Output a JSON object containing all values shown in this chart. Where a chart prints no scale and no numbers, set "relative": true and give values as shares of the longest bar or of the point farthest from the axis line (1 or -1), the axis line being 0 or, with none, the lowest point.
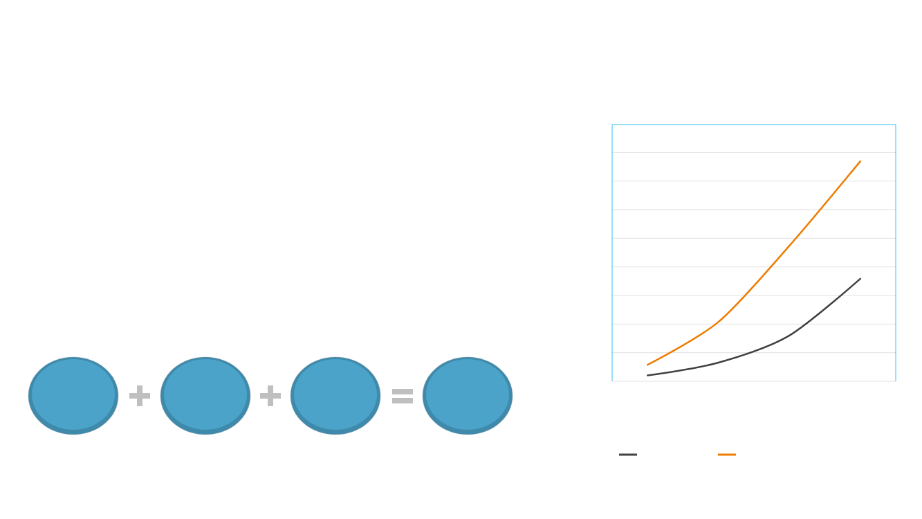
{
  "chart_data": {
    "type": "line",
    "relative": true,
    "categories": [
      null,
      null,
      null,
      null
    ],
    "grid": "y",
    "series": [
      {
        "color": "#404040",
        "values": [
          0.027,
          0.085,
          0.208,
          0.466
        ]
      },
      {
        "color": "#ed7d00",
        "values": [
          0.075,
          0.27,
          0.616,
          1.0
        ]
      }
    ]
  }
}
